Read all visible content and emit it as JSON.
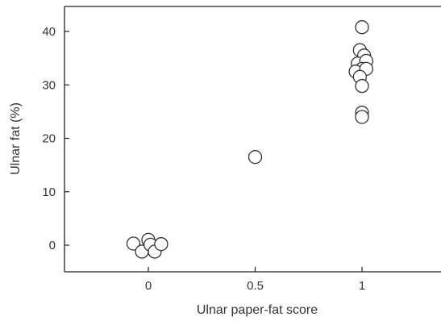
{
  "chart_data": {
    "type": "scatter",
    "title": "",
    "xlabel": "Ulnar paper-fat score",
    "ylabel": "Ulnar fat (%)",
    "xlim": [
      -0.4,
      1.4
    ],
    "ylim": [
      -5,
      45
    ],
    "xticks": [
      {
        "value": 0,
        "label": "0"
      },
      {
        "value": 0.5,
        "label": "0.5"
      },
      {
        "value": 1,
        "label": "1"
      }
    ],
    "yticks": [
      {
        "value": 0,
        "label": "0"
      },
      {
        "value": 10,
        "label": "10"
      },
      {
        "value": 20,
        "label": "20"
      },
      {
        "value": 30,
        "label": "30"
      },
      {
        "value": 40,
        "label": "40"
      }
    ],
    "grid": false,
    "marker": "open-circle",
    "series": [
      {
        "points": [
          {
            "x": -0.07,
            "y": 0.3
          },
          {
            "x": -0.03,
            "y": -1.2
          },
          {
            "x": 0.0,
            "y": 1.0
          },
          {
            "x": 0.01,
            "y": 0.1
          },
          {
            "x": 0.03,
            "y": -1.2
          },
          {
            "x": 0.06,
            "y": 0.2
          },
          {
            "x": 0.5,
            "y": 16.5
          },
          {
            "x": 1.0,
            "y": 40.8
          },
          {
            "x": 0.99,
            "y": 36.5
          },
          {
            "x": 1.01,
            "y": 35.5
          },
          {
            "x": 0.98,
            "y": 34.0
          },
          {
            "x": 1.02,
            "y": 34.5
          },
          {
            "x": 1.0,
            "y": 33.0
          },
          {
            "x": 0.97,
            "y": 32.5
          },
          {
            "x": 1.02,
            "y": 33.0
          },
          {
            "x": 0.99,
            "y": 31.5
          },
          {
            "x": 1.0,
            "y": 29.8
          },
          {
            "x": 1.0,
            "y": 24.8
          },
          {
            "x": 1.0,
            "y": 24.0
          }
        ]
      }
    ]
  }
}
